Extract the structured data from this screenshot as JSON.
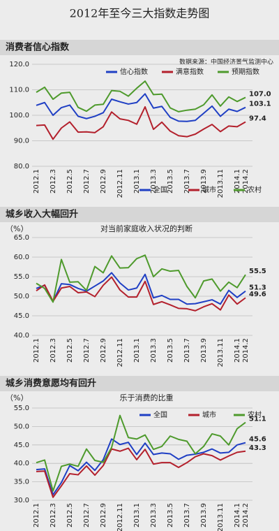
{
  "page_title": "2012年至今三大指数走势图",
  "chart_data": [
    {
      "type": "line",
      "title": "消费者信心指数",
      "source": "数据来源：中国经济景气监测中心",
      "categories": [
        "2012.1",
        null,
        "2012.3",
        null,
        "2012.5",
        null,
        "2012.7",
        null,
        "2012.9",
        null,
        "2012.11",
        null,
        "2013.1",
        null,
        "2013.3",
        null,
        "2013.5",
        null,
        "2013.7",
        null,
        "2013.9",
        null,
        "2013.11",
        null,
        "2014.1",
        "2014.2"
      ],
      "ylim": [
        80,
        120
      ],
      "yticks": [
        {
          "value": 80,
          "label": "80.0"
        },
        {
          "value": 90,
          "label": "90.0"
        },
        {
          "value": 100,
          "label": "100.0"
        },
        {
          "value": 110,
          "label": "110.0"
        },
        {
          "value": 120,
          "label": "120.0"
        }
      ],
      "grid": true,
      "series": [
        {
          "name": "信心指数",
          "color": "#1f3fc4",
          "values": [
            103.9,
            105.0,
            100.0,
            103.0,
            104.0,
            99.6,
            98.7,
            99.6,
            101.0,
            106.3,
            105.3,
            104.4,
            105.0,
            108.4,
            102.8,
            103.5,
            99.2,
            97.7,
            97.6,
            98.0,
            100.8,
            103.6,
            99.6,
            102.4,
            101.5,
            103.1
          ],
          "value_labels": [
            null,
            null,
            null,
            null,
            null,
            null,
            null,
            null,
            null,
            null,
            null,
            null,
            null,
            null,
            null,
            null,
            null,
            null,
            null,
            null,
            null,
            null,
            null,
            null,
            null,
            "103.1"
          ]
        },
        {
          "name": "满意指数",
          "color": "#b3202c",
          "values": [
            96.0,
            96.2,
            90.6,
            95.0,
            97.4,
            93.4,
            93.5,
            93.2,
            95.5,
            101.3,
            98.6,
            98.0,
            96.5,
            103.3,
            94.5,
            97.3,
            93.8,
            92.0,
            91.6,
            92.6,
            94.6,
            96.4,
            93.6,
            95.8,
            95.5,
            97.4
          ],
          "value_labels": [
            null,
            null,
            null,
            null,
            null,
            null,
            null,
            null,
            null,
            null,
            null,
            null,
            null,
            null,
            null,
            null,
            null,
            null,
            null,
            null,
            null,
            null,
            null,
            null,
            null,
            "97.4"
          ]
        },
        {
          "name": "预期指数",
          "color": "#4e9a2c",
          "values": [
            109.0,
            111.0,
            106.3,
            108.7,
            109.0,
            103.1,
            101.6,
            104.0,
            104.3,
            109.7,
            109.4,
            107.5,
            110.6,
            113.4,
            108.1,
            108.3,
            102.9,
            101.4,
            102.0,
            102.4,
            104.1,
            108.0,
            103.6,
            107.2,
            105.4,
            107.0
          ],
          "value_labels": [
            null,
            null,
            null,
            null,
            null,
            null,
            null,
            null,
            null,
            null,
            null,
            null,
            null,
            null,
            null,
            null,
            null,
            null,
            null,
            null,
            null,
            null,
            null,
            null,
            null,
            "107.0"
          ]
        }
      ]
    },
    {
      "type": "line",
      "title": "城乡收入大幅回升",
      "y_unit": "（%）",
      "subtitle": "对当前家庭收入状况的判断",
      "categories": [
        "2012.1",
        null,
        "2012.3",
        null,
        "2012.5",
        null,
        "2012.7",
        null,
        "2012.9",
        null,
        "2012.11",
        null,
        "2013.1",
        null,
        "2013.3",
        null,
        "2013.5",
        null,
        "2013.7",
        null,
        "2013.9",
        null,
        "2013.11",
        null,
        "2014.1",
        "2014.2"
      ],
      "ylim": [
        40,
        65
      ],
      "yticks": [
        {
          "value": 40,
          "label": "40.0"
        },
        {
          "value": 45,
          "label": "45.0"
        },
        {
          "value": 50,
          "label": "50.0"
        },
        {
          "value": 55,
          "label": "55.0"
        },
        {
          "value": 60,
          "label": "60.0"
        },
        {
          "value": 65,
          "label": "65.0"
        }
      ],
      "grid": true,
      "series": [
        {
          "name": "全国",
          "color": "#1f3fc4",
          "values": [
            52.0,
            52.8,
            48.7,
            53.2,
            53.0,
            52.0,
            51.3,
            52.6,
            53.9,
            56.0,
            53.4,
            51.6,
            52.1,
            55.6,
            49.6,
            50.2,
            49.2,
            49.2,
            48.0,
            48.1,
            48.6,
            49.1,
            48.0,
            51.5,
            49.7,
            51.3
          ],
          "value_labels": [
            null,
            null,
            null,
            null,
            null,
            null,
            null,
            null,
            null,
            null,
            null,
            null,
            null,
            null,
            null,
            null,
            null,
            null,
            null,
            null,
            null,
            null,
            null,
            null,
            null,
            "51.3"
          ]
        },
        {
          "name": "城市",
          "color": "#b3202c",
          "values": [
            51.4,
            52.9,
            48.7,
            52.1,
            52.5,
            50.9,
            51.1,
            49.9,
            52.8,
            54.9,
            51.6,
            49.8,
            49.8,
            53.8,
            47.9,
            48.6,
            47.8,
            46.9,
            46.8,
            46.3,
            47.3,
            48.1,
            46.5,
            50.3,
            48.0,
            49.6
          ],
          "value_labels": [
            null,
            null,
            null,
            null,
            null,
            null,
            null,
            null,
            null,
            null,
            null,
            null,
            null,
            null,
            null,
            null,
            null,
            null,
            null,
            null,
            null,
            null,
            null,
            null,
            null,
            "49.6"
          ]
        },
        {
          "name": "农村",
          "color": "#4e9a2c",
          "values": [
            53.3,
            52.0,
            48.5,
            59.4,
            53.6,
            53.7,
            51.5,
            57.6,
            56.0,
            60.3,
            57.2,
            57.3,
            59.6,
            60.5,
            55.0,
            57.0,
            56.4,
            56.6,
            52.5,
            49.6,
            53.9,
            54.4,
            51.3,
            53.6,
            52.2,
            55.5
          ],
          "value_labels": [
            null,
            null,
            null,
            null,
            null,
            null,
            null,
            null,
            null,
            null,
            null,
            null,
            null,
            null,
            null,
            null,
            null,
            null,
            null,
            null,
            null,
            null,
            null,
            null,
            null,
            "55.5"
          ]
        }
      ]
    },
    {
      "type": "line",
      "title": "城乡消费意愿均有回升",
      "y_unit": "（%）",
      "subtitle": "乐于消费的比重",
      "categories": [
        "2012.1",
        null,
        "2012.3",
        null,
        "2012.5",
        null,
        "2012.7",
        null,
        "2012.9",
        null,
        "2012.11",
        null,
        "2013.1",
        null,
        "2013.3",
        null,
        "2013.5",
        null,
        "2013.7",
        null,
        "2013.9",
        null,
        "2013.11",
        null,
        "2014.1",
        "2014.2"
      ],
      "ylim": [
        30,
        55
      ],
      "yticks": [
        {
          "value": 30,
          "label": "30.0"
        },
        {
          "value": 35,
          "label": "35.0"
        },
        {
          "value": 40,
          "label": "40.0"
        },
        {
          "value": 45,
          "label": "45.0"
        },
        {
          "value": 50,
          "label": "50.0"
        },
        {
          "value": 55,
          "label": "55.0"
        }
      ],
      "grid": true,
      "series": [
        {
          "name": "全国",
          "color": "#1f3fc4",
          "values": [
            38.3,
            38.5,
            31.5,
            34.8,
            39.4,
            38.0,
            40.3,
            38.1,
            41.0,
            46.6,
            45.1,
            45.7,
            42.4,
            45.5,
            42.4,
            42.8,
            42.6,
            41.1,
            42.2,
            42.5,
            43.0,
            43.9,
            42.8,
            43.0,
            45.0,
            45.6
          ],
          "value_labels": [
            null,
            null,
            null,
            null,
            null,
            null,
            null,
            null,
            null,
            null,
            null,
            null,
            null,
            null,
            null,
            null,
            null,
            null,
            null,
            null,
            null,
            null,
            null,
            null,
            null,
            "45.6"
          ]
        },
        {
          "name": "城市",
          "color": "#b3202c",
          "values": [
            37.8,
            37.9,
            30.8,
            33.9,
            37.2,
            36.9,
            39.3,
            36.8,
            39.4,
            43.9,
            43.3,
            44.1,
            41.0,
            43.8,
            39.8,
            40.2,
            40.2,
            38.9,
            40.2,
            41.8,
            42.6,
            42.1,
            40.9,
            42.0,
            43.0,
            43.3
          ],
          "value_labels": [
            null,
            null,
            null,
            null,
            null,
            null,
            null,
            null,
            null,
            null,
            null,
            null,
            null,
            null,
            null,
            null,
            null,
            null,
            null,
            null,
            null,
            null,
            null,
            null,
            null,
            "43.3"
          ]
        },
        {
          "name": "农村",
          "color": "#4e9a2c",
          "values": [
            40.2,
            40.9,
            32.5,
            39.2,
            39.8,
            39.2,
            43.9,
            40.8,
            40.3,
            44.3,
            53.0,
            47.0,
            46.6,
            47.7,
            43.8,
            44.6,
            47.4,
            46.5,
            46.0,
            42.6,
            44.6,
            48.0,
            47.4,
            45.0,
            49.4,
            51.1
          ],
          "value_labels": [
            null,
            null,
            null,
            null,
            null,
            null,
            null,
            null,
            null,
            null,
            null,
            null,
            null,
            null,
            null,
            null,
            null,
            null,
            null,
            null,
            null,
            null,
            null,
            null,
            null,
            "51.1"
          ]
        }
      ]
    }
  ]
}
